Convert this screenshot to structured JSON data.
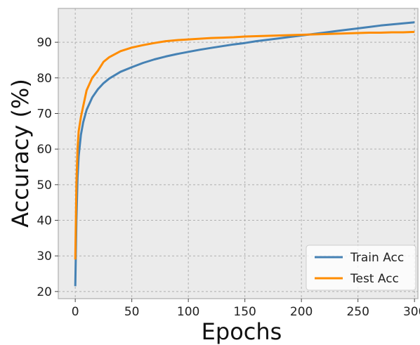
{
  "chart_data": {
    "type": "line",
    "title": "",
    "xlabel": "Epochs",
    "ylabel": "Accuracy (%)",
    "xlim": [
      -15,
      303
    ],
    "ylim": [
      18,
      99.5
    ],
    "x_ticks": [
      0,
      50,
      100,
      150,
      200,
      250,
      300
    ],
    "y_ticks": [
      20,
      30,
      40,
      50,
      60,
      70,
      80,
      90
    ],
    "grid": true,
    "legend_position": "lower-right",
    "background": "#ebebeb",
    "series": [
      {
        "name": "Train Acc",
        "color": "#4682b4",
        "x": [
          0,
          1,
          2,
          3,
          5,
          7,
          10,
          15,
          20,
          25,
          30,
          40,
          50,
          60,
          70,
          80,
          90,
          100,
          110,
          120,
          130,
          140,
          150,
          160,
          170,
          180,
          190,
          200,
          210,
          220,
          230,
          240,
          250,
          260,
          270,
          280,
          290,
          300
        ],
        "y": [
          21.5,
          40.0,
          52.0,
          58.0,
          64.0,
          67.5,
          71.0,
          74.5,
          76.8,
          78.5,
          79.8,
          81.7,
          83.0,
          84.2,
          85.2,
          86.0,
          86.7,
          87.3,
          87.9,
          88.4,
          88.9,
          89.4,
          89.8,
          90.3,
          90.7,
          91.1,
          91.5,
          91.9,
          92.3,
          92.7,
          93.1,
          93.5,
          93.9,
          94.3,
          94.7,
          95.0,
          95.3,
          95.6
        ]
      },
      {
        "name": "Test Acc",
        "color": "#ff8c00",
        "x": [
          0,
          1,
          2,
          3,
          5,
          7,
          10,
          15,
          20,
          25,
          30,
          40,
          50,
          60,
          70,
          80,
          90,
          100,
          110,
          120,
          130,
          140,
          150,
          160,
          170,
          180,
          190,
          200,
          210,
          220,
          230,
          240,
          250,
          260,
          270,
          280,
          290,
          300
        ],
        "y": [
          29.0,
          50.0,
          60.0,
          65.0,
          69.0,
          72.0,
          76.5,
          80.0,
          82.0,
          84.5,
          85.8,
          87.5,
          88.5,
          89.2,
          89.8,
          90.3,
          90.6,
          90.8,
          91.0,
          91.2,
          91.3,
          91.4,
          91.6,
          91.7,
          91.8,
          91.9,
          92.0,
          92.1,
          92.2,
          92.3,
          92.4,
          92.5,
          92.6,
          92.7,
          92.7,
          92.8,
          92.8,
          92.9
        ]
      }
    ]
  }
}
